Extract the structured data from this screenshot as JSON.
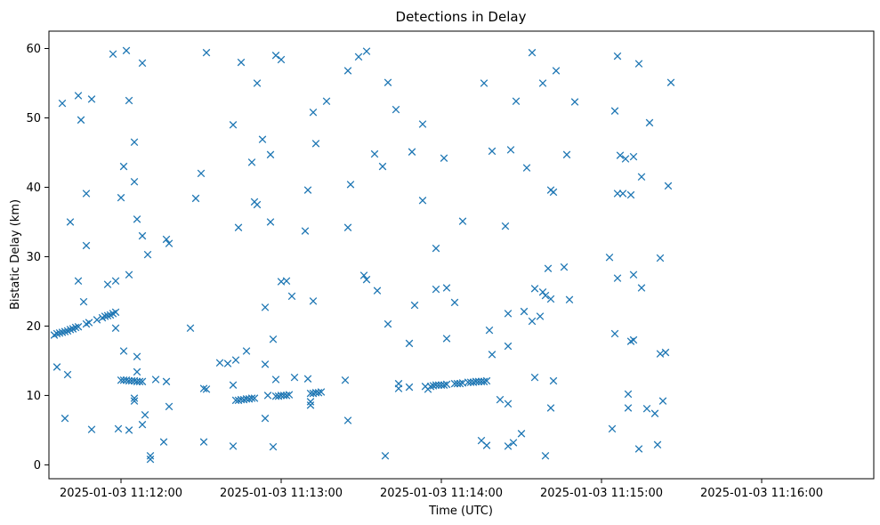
{
  "chart_data": {
    "type": "scatter",
    "title": "Detections in Delay",
    "xlabel": "Time (UTC)",
    "ylabel": "Bistatic Delay (km)",
    "x_date": "2025-01-03",
    "xlim": [
      "11:11:33",
      "11:16:42"
    ],
    "ylim": [
      -2,
      62.5
    ],
    "x_ticks": [
      "11:12:00",
      "11:13:00",
      "11:14:00",
      "11:15:00",
      "11:16:00"
    ],
    "x_tick_labels": [
      "2025-01-03 11:12:00",
      "2025-01-03 11:13:00",
      "2025-01-03 11:14:00",
      "2025-01-03 11:15:00",
      "2025-01-03 11:16:00"
    ],
    "y_ticks": [
      0,
      10,
      20,
      30,
      40,
      50,
      60
    ],
    "grid": false,
    "marker": "x",
    "color": "#1f77b4",
    "points": [
      [
        "11:11:35",
        18.7
      ],
      [
        "11:11:36",
        18.9
      ],
      [
        "11:11:37",
        19.0
      ],
      [
        "11:11:38",
        19.1
      ],
      [
        "11:11:39",
        19.2
      ],
      [
        "11:11:40",
        19.3
      ],
      [
        "11:11:41",
        19.5
      ],
      [
        "11:11:42",
        19.6
      ],
      [
        "11:11:43",
        19.8
      ],
      [
        "11:11:44",
        19.9
      ],
      [
        "11:11:47",
        20.3
      ],
      [
        "11:11:48",
        20.5
      ],
      [
        "11:11:51",
        20.9
      ],
      [
        "11:11:53",
        21.2
      ],
      [
        "11:11:54",
        21.4
      ],
      [
        "11:11:55",
        21.5
      ],
      [
        "11:11:56",
        21.6
      ],
      [
        "11:11:57",
        21.8
      ],
      [
        "11:11:58",
        22.0
      ],
      [
        "11:11:36",
        14.1
      ],
      [
        "11:11:38",
        52.1
      ],
      [
        "11:11:39",
        6.7
      ],
      [
        "11:11:40",
        13.0
      ],
      [
        "11:11:41",
        35.0
      ],
      [
        "11:11:44",
        26.5
      ],
      [
        "11:11:44",
        53.2
      ],
      [
        "11:11:45",
        49.7
      ],
      [
        "11:11:46",
        23.5
      ],
      [
        "11:11:47",
        39.1
      ],
      [
        "11:11:47",
        31.6
      ],
      [
        "11:11:49",
        52.7
      ],
      [
        "11:11:49",
        5.1
      ],
      [
        "11:11:55",
        26.0
      ],
      [
        "11:11:57",
        59.2
      ],
      [
        "11:11:58",
        26.5
      ],
      [
        "11:11:58",
        19.7
      ],
      [
        "11:11:59",
        5.2
      ],
      [
        "11:12:00",
        38.5
      ],
      [
        "11:12:01",
        16.4
      ],
      [
        "11:12:01",
        43.0
      ],
      [
        "11:12:02",
        59.7
      ],
      [
        "11:12:03",
        27.4
      ],
      [
        "11:12:03",
        52.5
      ],
      [
        "11:12:03",
        5.0
      ],
      [
        "11:12:05",
        46.5
      ],
      [
        "11:12:05",
        40.8
      ],
      [
        "11:12:06",
        35.4
      ],
      [
        "11:12:06",
        15.6
      ],
      [
        "11:12:06",
        13.4
      ],
      [
        "11:12:05",
        9.6
      ],
      [
        "11:12:05",
        9.2
      ],
      [
        "11:12:08",
        57.9
      ],
      [
        "11:12:08",
        33.0
      ],
      [
        "11:12:08",
        5.8
      ],
      [
        "11:12:09",
        7.2
      ],
      [
        "11:12:10",
        30.3
      ],
      [
        "11:12:11",
        1.3
      ],
      [
        "11:12:11",
        0.8
      ],
      [
        "11:12:13",
        12.3
      ],
      [
        "11:12:16",
        3.3
      ],
      [
        "11:12:17",
        32.5
      ],
      [
        "11:12:17",
        12.0
      ],
      [
        "11:12:18",
        31.9
      ],
      [
        "11:12:18",
        8.4
      ],
      [
        "11:12:26",
        19.7
      ],
      [
        "11:12:28",
        38.4
      ],
      [
        "11:12:30",
        42.0
      ],
      [
        "11:12:31",
        3.3
      ],
      [
        "11:12:31",
        11.0
      ],
      [
        "11:12:32",
        10.9
      ],
      [
        "11:12:32",
        59.4
      ],
      [
        "11:12:37",
        14.7
      ],
      [
        "11:12:40",
        14.6
      ],
      [
        "11:12:42",
        49.0
      ],
      [
        "11:12:42",
        11.5
      ],
      [
        "11:12:43",
        15.1
      ],
      [
        "11:12:44",
        34.2
      ],
      [
        "11:12:45",
        58.0
      ],
      [
        "11:12:47",
        16.4
      ],
      [
        "11:12:42",
        2.7
      ],
      [
        "11:12:49",
        43.6
      ],
      [
        "11:12:50",
        37.9
      ],
      [
        "11:12:51",
        37.5
      ],
      [
        "11:12:51",
        55.0
      ],
      [
        "11:12:53",
        46.9
      ],
      [
        "11:12:54",
        22.7
      ],
      [
        "11:12:54",
        14.5
      ],
      [
        "11:12:54",
        6.7
      ],
      [
        "11:12:55",
        10.0
      ],
      [
        "11:12:56",
        44.7
      ],
      [
        "11:12:56",
        35.0
      ],
      [
        "11:12:57",
        18.1
      ],
      [
        "11:12:57",
        2.6
      ],
      [
        "11:12:58",
        59.0
      ],
      [
        "11:12:58",
        12.3
      ],
      [
        "11:13:00",
        26.4
      ],
      [
        "11:13:00",
        58.4
      ],
      [
        "11:13:02",
        26.5
      ],
      [
        "11:13:04",
        24.3
      ],
      [
        "11:13:05",
        12.6
      ],
      [
        "11:13:09",
        33.7
      ],
      [
        "11:13:10",
        12.4
      ],
      [
        "11:13:10",
        39.6
      ],
      [
        "11:13:11",
        9.1
      ],
      [
        "11:13:11",
        8.6
      ],
      [
        "11:13:12",
        50.8
      ],
      [
        "11:13:12",
        23.6
      ],
      [
        "11:13:13",
        46.3
      ],
      [
        "11:13:17",
        52.4
      ],
      [
        "11:13:24",
        12.2
      ],
      [
        "11:13:25",
        6.4
      ],
      [
        "11:13:25",
        34.2
      ],
      [
        "11:13:25",
        56.8
      ],
      [
        "11:13:26",
        40.4
      ],
      [
        "11:13:29",
        58.8
      ],
      [
        "11:13:31",
        27.3
      ],
      [
        "11:13:32",
        26.7
      ],
      [
        "11:13:32",
        59.6
      ],
      [
        "11:13:35",
        44.8
      ],
      [
        "11:13:36",
        25.1
      ],
      [
        "11:13:38",
        43.0
      ],
      [
        "11:13:39",
        1.3
      ],
      [
        "11:13:40",
        20.3
      ],
      [
        "11:13:40",
        55.1
      ],
      [
        "11:13:43",
        51.2
      ],
      [
        "11:13:44",
        11.0
      ],
      [
        "11:13:44",
        11.7
      ],
      [
        "11:13:48",
        17.5
      ],
      [
        "11:13:48",
        11.2
      ],
      [
        "11:13:49",
        45.1
      ],
      [
        "11:13:50",
        23.0
      ],
      [
        "11:13:53",
        49.1
      ],
      [
        "11:13:53",
        38.1
      ],
      [
        "11:13:58",
        31.2
      ],
      [
        "11:13:58",
        25.3
      ],
      [
        "11:14:01",
        44.2
      ],
      [
        "11:14:02",
        18.2
      ],
      [
        "11:14:02",
        25.5
      ],
      [
        "11:14:05",
        23.4
      ],
      [
        "11:14:08",
        35.1
      ],
      [
        "11:14:15",
        3.5
      ],
      [
        "11:14:16",
        55.0
      ],
      [
        "11:14:17",
        2.8
      ],
      [
        "11:14:18",
        19.4
      ],
      [
        "11:14:19",
        45.2
      ],
      [
        "11:14:19",
        15.9
      ],
      [
        "11:14:22",
        9.4
      ],
      [
        "11:14:24",
        34.4
      ],
      [
        "11:14:25",
        21.8
      ],
      [
        "11:14:25",
        17.1
      ],
      [
        "11:14:25",
        8.8
      ],
      [
        "11:14:25",
        2.7
      ],
      [
        "11:14:26",
        45.4
      ],
      [
        "11:14:27",
        3.2
      ],
      [
        "11:14:28",
        52.4
      ],
      [
        "11:14:30",
        4.5
      ],
      [
        "11:14:31",
        22.1
      ],
      [
        "11:14:32",
        42.8
      ],
      [
        "11:14:34",
        20.7
      ],
      [
        "11:14:34",
        59.4
      ],
      [
        "11:14:35",
        12.6
      ],
      [
        "11:14:35",
        25.4
      ],
      [
        "11:14:37",
        21.4
      ],
      [
        "11:14:38",
        55.0
      ],
      [
        "11:14:38",
        24.9
      ],
      [
        "11:14:39",
        24.4
      ],
      [
        "11:14:39",
        1.3
      ],
      [
        "11:14:40",
        28.3
      ],
      [
        "11:14:41",
        39.6
      ],
      [
        "11:14:41",
        23.9
      ],
      [
        "11:14:41",
        8.2
      ],
      [
        "11:14:42",
        12.1
      ],
      [
        "11:14:42",
        39.3
      ],
      [
        "11:14:43",
        56.8
      ],
      [
        "11:14:46",
        28.5
      ],
      [
        "11:14:47",
        44.7
      ],
      [
        "11:14:48",
        23.8
      ],
      [
        "11:14:50",
        52.3
      ],
      [
        "11:15:03",
        29.9
      ],
      [
        "11:15:04",
        5.2
      ],
      [
        "11:15:05",
        18.9
      ],
      [
        "11:15:05",
        51.0
      ],
      [
        "11:15:06",
        26.9
      ],
      [
        "11:15:06",
        58.9
      ],
      [
        "11:15:06",
        39.1
      ],
      [
        "11:15:07",
        44.6
      ],
      [
        "11:15:08",
        39.1
      ],
      [
        "11:15:09",
        44.1
      ],
      [
        "11:15:10",
        8.2
      ],
      [
        "11:15:10",
        10.2
      ],
      [
        "11:15:11",
        38.9
      ],
      [
        "11:15:12",
        44.4
      ],
      [
        "11:15:11",
        17.8
      ],
      [
        "11:15:12",
        18.0
      ],
      [
        "11:15:12",
        27.4
      ],
      [
        "11:15:14",
        57.8
      ],
      [
        "11:15:14",
        2.3
      ],
      [
        "11:15:15",
        41.5
      ],
      [
        "11:15:15",
        25.5
      ],
      [
        "11:15:17",
        8.1
      ],
      [
        "11:15:18",
        49.3
      ],
      [
        "11:15:20",
        7.4
      ],
      [
        "11:15:21",
        2.9
      ],
      [
        "11:15:22",
        16.0
      ],
      [
        "11:15:22",
        29.8
      ],
      [
        "11:15:23",
        9.2
      ],
      [
        "11:15:24",
        16.2
      ],
      [
        "11:15:25",
        40.2
      ],
      [
        "11:15:26",
        55.1
      ],
      [
        "11:12:00",
        12.2
      ],
      [
        "11:12:01",
        12.2
      ],
      [
        "11:12:02",
        12.2
      ],
      [
        "11:12:03",
        12.1
      ],
      [
        "11:12:04",
        12.1
      ],
      [
        "11:12:05",
        12.1
      ],
      [
        "11:12:06",
        12.0
      ],
      [
        "11:12:07",
        12.0
      ],
      [
        "11:12:08",
        12.0
      ],
      [
        "11:12:43",
        9.3
      ],
      [
        "11:12:44",
        9.3
      ],
      [
        "11:12:45",
        9.4
      ],
      [
        "11:12:46",
        9.4
      ],
      [
        "11:12:47",
        9.5
      ],
      [
        "11:12:48",
        9.5
      ],
      [
        "11:12:49",
        9.6
      ],
      [
        "11:12:50",
        9.6
      ],
      [
        "11:12:58",
        9.9
      ],
      [
        "11:12:59",
        9.9
      ],
      [
        "11:13:00",
        10.0
      ],
      [
        "11:13:01",
        10.0
      ],
      [
        "11:13:02",
        10.0
      ],
      [
        "11:13:03",
        10.1
      ],
      [
        "11:13:11",
        10.3
      ],
      [
        "11:13:12",
        10.3
      ],
      [
        "11:13:13",
        10.4
      ],
      [
        "11:13:14",
        10.4
      ],
      [
        "11:13:15",
        10.5
      ],
      [
        "11:13:54",
        11.3
      ],
      [
        "11:13:55",
        10.9
      ],
      [
        "11:13:56",
        11.3
      ],
      [
        "11:13:57",
        11.4
      ],
      [
        "11:13:58",
        11.5
      ],
      [
        "11:13:59",
        11.5
      ],
      [
        "11:14:00",
        11.5
      ],
      [
        "11:14:01",
        11.5
      ],
      [
        "11:14:02",
        11.6
      ],
      [
        "11:14:05",
        11.7
      ],
      [
        "11:14:06",
        11.7
      ],
      [
        "11:14:07",
        11.7
      ],
      [
        "11:14:08",
        11.8
      ],
      [
        "11:14:10",
        11.9
      ],
      [
        "11:14:11",
        11.9
      ],
      [
        "11:14:12",
        11.9
      ],
      [
        "11:14:13",
        12.0
      ],
      [
        "11:14:14",
        12.0
      ],
      [
        "11:14:15",
        12.0
      ],
      [
        "11:14:16",
        12.0
      ],
      [
        "11:14:17",
        12.1
      ]
    ]
  }
}
